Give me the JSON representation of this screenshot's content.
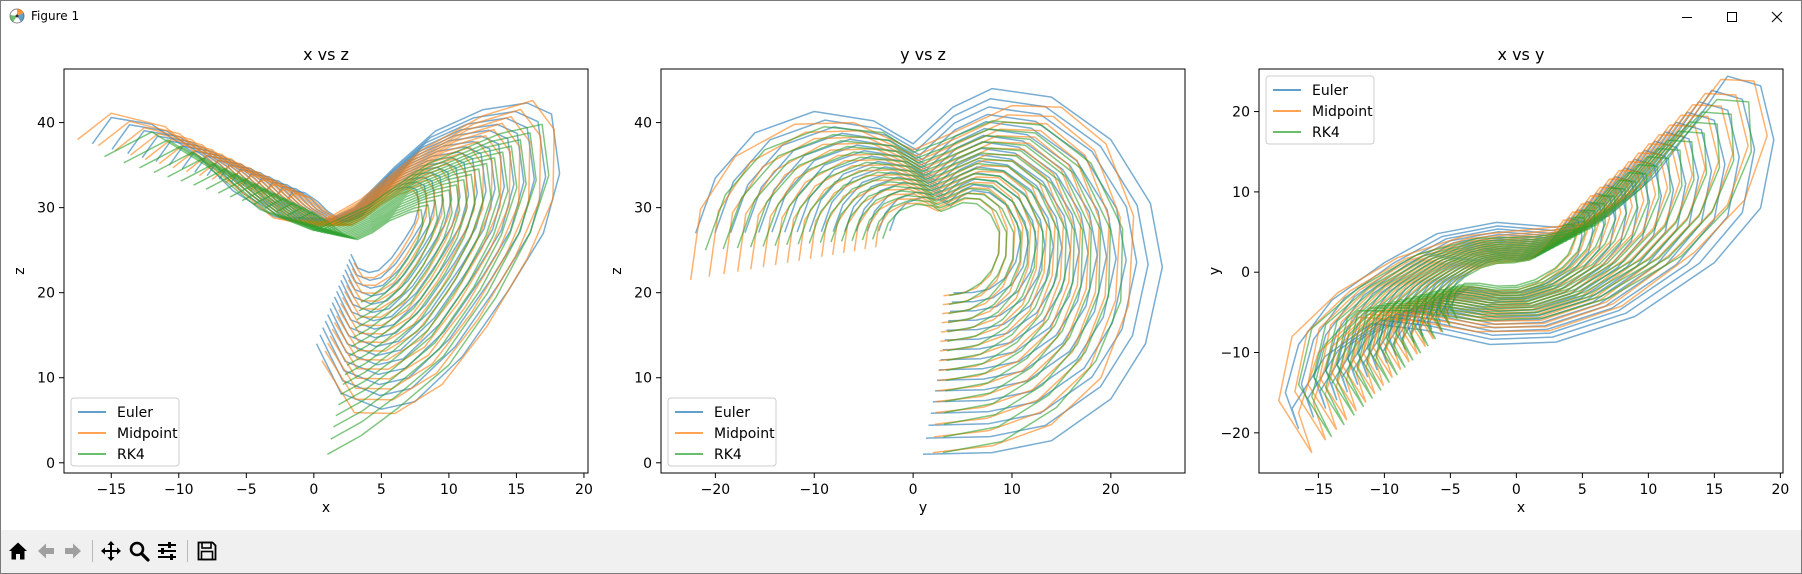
{
  "window": {
    "title": "Figure 1",
    "controls": [
      "minimize-icon",
      "maximize-icon",
      "close-icon"
    ]
  },
  "toolbar": {
    "buttons": [
      "home-icon",
      "back-icon",
      "forward-icon",
      "pan-icon",
      "zoom-icon",
      "configure-subplots-icon",
      "save-icon"
    ]
  },
  "colors": {
    "Euler": "#1f77b4",
    "Midpoint": "#ff7f0e",
    "RK4": "#2ca02c"
  },
  "chart_data": [
    {
      "type": "line",
      "title": "x vs z",
      "xlabel": "x",
      "ylabel": "z",
      "xlim": [
        -18.5,
        20.3
      ],
      "ylim": [
        -1.2,
        46.3
      ],
      "xticks": [
        -15,
        -10,
        -5,
        0,
        5,
        10,
        15,
        20
      ],
      "yticks": [
        0,
        10,
        20,
        30,
        40
      ],
      "xticklabels": [
        "−15",
        "−10",
        "−5",
        "0",
        "5",
        "10",
        "15",
        "20"
      ],
      "yticklabels": [
        "0",
        "10",
        "20",
        "30",
        "40"
      ],
      "legend": "lower-left",
      "grid": false,
      "series": [
        {
          "name": "Euler",
          "points": [
            [
              -16.4,
              37.5
            ],
            [
              -15,
              40.6
            ],
            [
              -12,
              39.8
            ],
            [
              -8.5,
              36
            ],
            [
              -6,
              32
            ],
            [
              -3,
              29
            ],
            [
              0,
              27.8
            ],
            [
              3,
              30
            ],
            [
              6,
              34.8
            ],
            [
              9,
              39
            ],
            [
              12.5,
              41.5
            ],
            [
              15.8,
              42.3
            ],
            [
              17.6,
              41
            ],
            [
              18.2,
              34
            ],
            [
              17,
              27
            ],
            [
              14.5,
              20.5
            ],
            [
              11,
              12.5
            ],
            [
              7.5,
              7.2
            ],
            [
              5,
              6.3
            ],
            [
              2,
              8.2
            ],
            [
              0.2,
              14
            ]
          ]
        },
        {
          "name": "Midpoint",
          "points": [
            [
              -17.5,
              38
            ],
            [
              -15,
              41.1
            ],
            [
              -11,
              39.5
            ],
            [
              -7,
              34
            ],
            [
              -3,
              28.8
            ],
            [
              0,
              27.8
            ],
            [
              3.5,
              31
            ],
            [
              8,
              36.8
            ],
            [
              12.5,
              40.8
            ],
            [
              16.2,
              42.6
            ],
            [
              17.8,
              39.2
            ],
            [
              17.7,
              31
            ],
            [
              15.8,
              24
            ],
            [
              12.8,
              16
            ],
            [
              9.5,
              9.2
            ],
            [
              6,
              5.8
            ],
            [
              3,
              5.9
            ],
            [
              0.6,
              12
            ]
          ]
        },
        {
          "name": "RK4",
          "points": [
            [
              -15.5,
              36
            ],
            [
              -12,
              38.9
            ],
            [
              -8,
              35
            ],
            [
              -4,
              29.8
            ],
            [
              0,
              27.3
            ],
            [
              4,
              30.2
            ],
            [
              8.5,
              35.2
            ],
            [
              13.8,
              38.7
            ],
            [
              16.9,
              39.8
            ],
            [
              17.4,
              33.8
            ],
            [
              16,
              27
            ],
            [
              13.5,
              19.5
            ],
            [
              10,
              11.5
            ],
            [
              6.2,
              6.4
            ],
            [
              3.5,
              3.2
            ],
            [
              1,
              1
            ]
          ]
        }
      ]
    },
    {
      "type": "line",
      "title": "y vs z",
      "xlabel": "y",
      "ylabel": "z",
      "xlim": [
        -25.5,
        27.5
      ],
      "ylim": [
        -1.2,
        46.3
      ],
      "xticks": [
        -20,
        -10,
        0,
        10,
        20
      ],
      "yticks": [
        0,
        10,
        20,
        30,
        40
      ],
      "xticklabels": [
        "−20",
        "−10",
        "0",
        "10",
        "20"
      ],
      "yticklabels": [
        "0",
        "10",
        "20",
        "30",
        "40"
      ],
      "legend": "lower-left",
      "grid": false,
      "series": [
        {
          "name": "Euler",
          "points": [
            [
              -22,
              27
            ],
            [
              -20,
              33.5
            ],
            [
              -16,
              38.8
            ],
            [
              -10,
              41.3
            ],
            [
              -4,
              40.2
            ],
            [
              0,
              37.5
            ],
            [
              4,
              41.8
            ],
            [
              8,
              44
            ],
            [
              14,
              43
            ],
            [
              20,
              38
            ],
            [
              24,
              30.5
            ],
            [
              25.2,
              23
            ],
            [
              23.5,
              14
            ],
            [
              20,
              7.5
            ],
            [
              14,
              2.6
            ],
            [
              8,
              1.2
            ],
            [
              1,
              1
            ]
          ]
        },
        {
          "name": "Midpoint",
          "points": [
            [
              -22.5,
              21.5
            ],
            [
              -21.5,
              29.8
            ],
            [
              -18,
              36
            ],
            [
              -12,
              39.8
            ],
            [
              -6,
              40
            ],
            [
              0,
              36.8
            ],
            [
              4,
              38.8
            ],
            [
              10,
              42
            ],
            [
              15,
              41.8
            ],
            [
              19.5,
              37.5
            ],
            [
              22.3,
              29
            ],
            [
              21.8,
              18.5
            ],
            [
              19,
              10
            ],
            [
              14,
              4.5
            ],
            [
              8,
              2
            ],
            [
              2,
              1.2
            ]
          ]
        },
        {
          "name": "RK4",
          "points": [
            [
              -21,
              25
            ],
            [
              -19,
              31.5
            ],
            [
              -15,
              36.8
            ],
            [
              -9,
              39.5
            ],
            [
              -3,
              38.8
            ],
            [
              0,
              36.5
            ],
            [
              3,
              37.8
            ],
            [
              8,
              40.2
            ],
            [
              13,
              39.7
            ],
            [
              18,
              35.2
            ],
            [
              21.2,
              27.5
            ],
            [
              21,
              19
            ],
            [
              18.5,
              12
            ],
            [
              14.5,
              6.5
            ],
            [
              9,
              2.5
            ],
            [
              3,
              1.2
            ]
          ]
        }
      ]
    },
    {
      "type": "line",
      "title": "x vs y",
      "xlabel": "x",
      "ylabel": "y",
      "xlim": [
        -19.5,
        20.2
      ],
      "ylim": [
        -25,
        25.3
      ],
      "xticks": [
        -15,
        -10,
        -5,
        0,
        5,
        10,
        15,
        20
      ],
      "yticks": [
        -20,
        -10,
        0,
        10,
        20
      ],
      "xticklabels": [
        "−15",
        "−10",
        "−5",
        "0",
        "5",
        "10",
        "15",
        "20"
      ],
      "yticklabels": [
        "−20",
        "−10",
        "0",
        "10",
        "20"
      ],
      "legend": "upper-left",
      "grid": false,
      "series": [
        {
          "name": "Euler",
          "points": [
            [
              -16.5,
              -19.5
            ],
            [
              -17.5,
              -15
            ],
            [
              -16.5,
              -9
            ],
            [
              -14,
              -3.5
            ],
            [
              -10,
              1.2
            ],
            [
              -6,
              4.8
            ],
            [
              -1.5,
              6.2
            ],
            [
              3,
              5.6
            ],
            [
              7,
              7
            ],
            [
              10.5,
              12
            ],
            [
              13.5,
              18.5
            ],
            [
              16,
              24.4
            ],
            [
              18.5,
              23.2
            ],
            [
              19.5,
              16.5
            ],
            [
              18.5,
              8
            ],
            [
              15,
              1.2
            ],
            [
              9,
              -5.5
            ],
            [
              3,
              -8.7
            ],
            [
              -2,
              -9
            ],
            [
              -7,
              -7.2
            ],
            [
              -11,
              -6.4
            ],
            [
              -14.5,
              -10.5
            ],
            [
              -17,
              -17
            ],
            [
              -16.5,
              -19.5
            ]
          ]
        },
        {
          "name": "Midpoint",
          "points": [
            [
              -15.5,
              -22.5
            ],
            [
              -18,
              -16
            ],
            [
              -17,
              -8
            ],
            [
              -13.5,
              -2.5
            ],
            [
              -9,
              1.8
            ],
            [
              -4,
              4.5
            ],
            [
              1,
              5.3
            ],
            [
              6,
              6.2
            ],
            [
              9.5,
              11
            ],
            [
              12.5,
              17.5
            ],
            [
              15.5,
              24
            ],
            [
              18,
              23.8
            ],
            [
              19,
              17
            ],
            [
              17.3,
              9
            ],
            [
              13.5,
              2.5
            ],
            [
              8,
              -4.2
            ],
            [
              2.5,
              -7.3
            ],
            [
              -3,
              -7.4
            ],
            [
              -8,
              -6
            ],
            [
              -12,
              -5.6
            ],
            [
              -15,
              -10
            ],
            [
              -16.5,
              -17.5
            ],
            [
              -15.5,
              -22.5
            ]
          ]
        },
        {
          "name": "RK4",
          "points": [
            [
              -14,
              -20.5
            ],
            [
              -16.5,
              -14
            ],
            [
              -15.5,
              -7
            ],
            [
              -12,
              -2
            ],
            [
              -7.5,
              2.2
            ],
            [
              -3,
              4.2
            ],
            [
              1.5,
              4.4
            ],
            [
              6,
              5.8
            ],
            [
              9.5,
              10.5
            ],
            [
              12.5,
              16.5
            ],
            [
              15.2,
              21.5
            ],
            [
              17.6,
              21.2
            ],
            [
              17.8,
              15
            ],
            [
              16,
              8
            ],
            [
              12.5,
              2
            ],
            [
              7,
              -3.2
            ],
            [
              2,
              -5.7
            ],
            [
              -3,
              -6
            ],
            [
              -8,
              -4.8
            ],
            [
              -12,
              -4.8
            ],
            [
              -14.5,
              -9
            ],
            [
              -15.5,
              -15.5
            ],
            [
              -14,
              -20.5
            ]
          ]
        }
      ]
    }
  ]
}
